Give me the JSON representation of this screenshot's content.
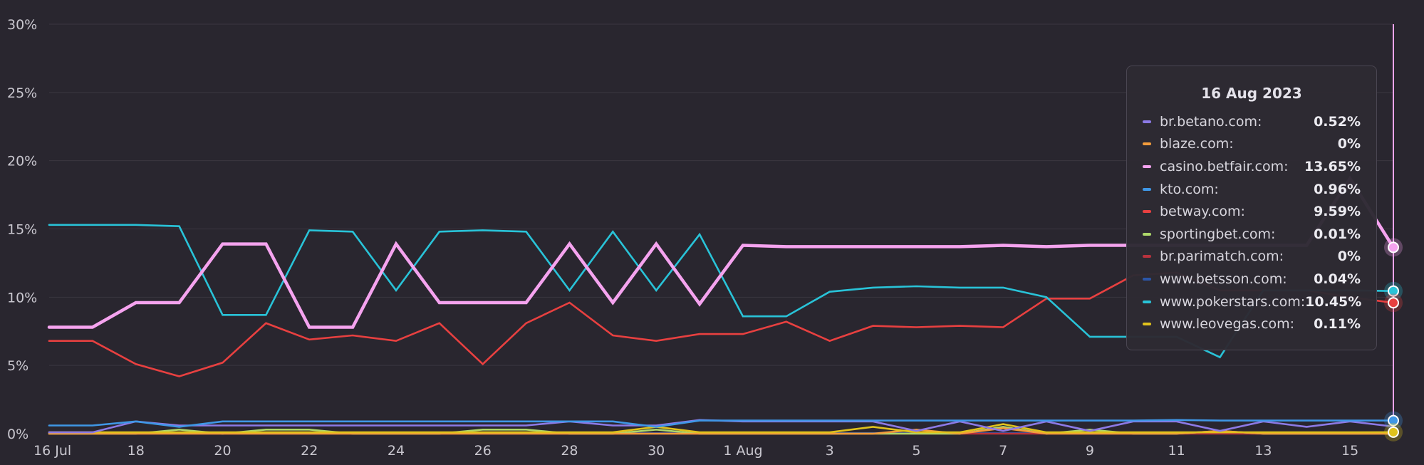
{
  "chart_data": {
    "type": "line",
    "title": "",
    "xlabel": "",
    "ylabel": "",
    "ylim": [
      0,
      30
    ],
    "y_ticks": [
      "0%",
      "5%",
      "10%",
      "15%",
      "20%",
      "25%",
      "30%"
    ],
    "x_tick_labels": [
      "16 Jul",
      "18",
      "20",
      "22",
      "24",
      "26",
      "28",
      "30",
      "1 Aug",
      "3",
      "5",
      "7",
      "9",
      "11",
      "13",
      "15"
    ],
    "x_tick_index": [
      0,
      2,
      4,
      6,
      8,
      10,
      12,
      14,
      16,
      18,
      20,
      22,
      24,
      26,
      28,
      30
    ],
    "grid": true,
    "legend": "tooltip-right",
    "x": [
      "16 Jul",
      "17 Jul",
      "18 Jul",
      "19 Jul",
      "20 Jul",
      "21 Jul",
      "22 Jul",
      "23 Jul",
      "24 Jul",
      "25 Jul",
      "26 Jul",
      "27 Jul",
      "28 Jul",
      "29 Jul",
      "30 Jul",
      "31 Jul",
      "1 Aug",
      "2 Aug",
      "3 Aug",
      "4 Aug",
      "5 Aug",
      "6 Aug",
      "7 Aug",
      "8 Aug",
      "9 Aug",
      "10 Aug",
      "11 Aug",
      "12 Aug",
      "13 Aug",
      "14 Aug",
      "15 Aug",
      "16 Aug"
    ],
    "series": [
      {
        "name": "br.betano.com",
        "color": "#8c7ae6",
        "values": [
          0.1,
          0.1,
          0.9,
          0.6,
          0.6,
          0.6,
          0.6,
          0.6,
          0.6,
          0.6,
          0.6,
          0.6,
          0.9,
          0.6,
          0.6,
          1.0,
          0.9,
          0.9,
          0.9,
          0.9,
          0.2,
          0.9,
          0.2,
          0.9,
          0.2,
          0.9,
          0.9,
          0.2,
          0.9,
          0.5,
          0.9,
          0.52
        ]
      },
      {
        "name": "blaze.com",
        "color": "#f39c3c",
        "values": [
          0,
          0,
          0,
          0,
          0,
          0,
          0,
          0,
          0,
          0,
          0,
          0,
          0,
          0,
          0,
          0,
          0,
          0,
          0,
          0,
          0.3,
          0,
          0.4,
          0,
          0,
          0,
          0,
          0.2,
          0,
          0,
          0,
          0
        ]
      },
      {
        "name": "casino.betfair.com",
        "color": "#f5a3ef",
        "values": [
          7.8,
          7.8,
          9.6,
          9.6,
          13.9,
          13.9,
          7.8,
          7.8,
          13.9,
          9.6,
          9.6,
          9.6,
          13.9,
          9.6,
          13.9,
          9.5,
          13.8,
          13.7,
          13.7,
          13.7,
          13.7,
          13.7,
          13.8,
          13.7,
          13.8,
          13.8,
          13.8,
          13.8,
          13.8,
          13.8,
          18.7,
          13.65
        ]
      },
      {
        "name": "kto.com",
        "color": "#3f97e6",
        "values": [
          0.6,
          0.6,
          0.9,
          0.5,
          0.9,
          0.9,
          0.9,
          0.9,
          0.9,
          0.9,
          0.9,
          0.9,
          0.9,
          0.9,
          0.5,
          0.96,
          0.96,
          0.96,
          0.96,
          0.96,
          0.96,
          0.96,
          0.96,
          0.96,
          0.96,
          0.96,
          1.0,
          0.96,
          0.96,
          0.96,
          0.96,
          0.96
        ]
      },
      {
        "name": "betway.com",
        "color": "#e84040",
        "values": [
          6.8,
          6.8,
          5.1,
          4.2,
          5.2,
          8.1,
          6.9,
          7.2,
          6.8,
          8.1,
          5.1,
          8.1,
          9.6,
          7.2,
          6.8,
          7.3,
          7.3,
          8.2,
          6.8,
          7.9,
          7.8,
          7.9,
          7.8,
          9.9,
          9.9,
          11.6,
          11.8,
          10.5,
          10.5,
          10.5,
          10.0,
          9.59
        ]
      },
      {
        "name": "sportingbet.com",
        "color": "#aed86a",
        "values": [
          0,
          0,
          0,
          0.3,
          0,
          0.3,
          0.3,
          0,
          0,
          0,
          0.3,
          0.3,
          0,
          0,
          0.3,
          0,
          0,
          0,
          0,
          0,
          0,
          0,
          0.5,
          0,
          0.3,
          0,
          0,
          0.2,
          0,
          0,
          0,
          0.01
        ]
      },
      {
        "name": "br.parimatch.com",
        "color": "#b8323d",
        "values": [
          0,
          0,
          0,
          0,
          0,
          0,
          0,
          0,
          0,
          0,
          0,
          0,
          0,
          0,
          0,
          0,
          0,
          0,
          0,
          0,
          0,
          0,
          0,
          0,
          0,
          0,
          0,
          0,
          0,
          0,
          0,
          0
        ]
      },
      {
        "name": "www.betsson.com",
        "color": "#2b56a8",
        "values": [
          0.04,
          0.04,
          0.04,
          0.04,
          0.04,
          0.04,
          0.04,
          0.04,
          0.04,
          0.04,
          0.04,
          0.04,
          0.04,
          0.04,
          0.04,
          0.04,
          0.04,
          0.04,
          0.04,
          0.04,
          0.04,
          0.04,
          0.04,
          0.04,
          0.04,
          0.04,
          0.04,
          0.04,
          0.04,
          0.04,
          0.04,
          0.04
        ]
      },
      {
        "name": "www.pokerstars.com",
        "color": "#29c3d8",
        "values": [
          15.3,
          15.3,
          15.3,
          15.2,
          8.7,
          8.7,
          14.9,
          14.8,
          10.5,
          14.8,
          14.9,
          14.8,
          10.5,
          14.8,
          10.5,
          14.6,
          8.6,
          8.6,
          10.4,
          10.7,
          10.8,
          10.7,
          10.7,
          10.0,
          7.1,
          7.1,
          7.1,
          5.6,
          10.5,
          10.5,
          10.5,
          10.45
        ]
      },
      {
        "name": "www.leovegas.com",
        "color": "#e0c21c",
        "values": [
          0.1,
          0.1,
          0.1,
          0.1,
          0.1,
          0.1,
          0.1,
          0.1,
          0.1,
          0.1,
          0.1,
          0.1,
          0.1,
          0.1,
          0.5,
          0.1,
          0.1,
          0.1,
          0.1,
          0.5,
          0.1,
          0.1,
          0.7,
          0.1,
          0.1,
          0.1,
          0.1,
          0.1,
          0.1,
          0.1,
          0.1,
          0.11
        ]
      }
    ],
    "tooltip": {
      "date": "16 Aug 2023",
      "rows": [
        {
          "label": "br.betano.com:",
          "value": "0.52%",
          "color": "#8c7ae6"
        },
        {
          "label": "blaze.com:",
          "value": "0%",
          "color": "#f39c3c"
        },
        {
          "label": "casino.betfair.com:",
          "value": "13.65%",
          "color": "#f5a3ef"
        },
        {
          "label": "kto.com:",
          "value": "0.96%",
          "color": "#3f97e6"
        },
        {
          "label": "betway.com:",
          "value": "9.59%",
          "color": "#e84040"
        },
        {
          "label": "sportingbet.com:",
          "value": "0.01%",
          "color": "#aed86a"
        },
        {
          "label": "br.parimatch.com:",
          "value": "0%",
          "color": "#b8323d"
        },
        {
          "label": "www.betsson.com:",
          "value": "0.04%",
          "color": "#2b56a8"
        },
        {
          "label": "www.pokerstars.com:",
          "value": "10.45%",
          "color": "#29c3d8"
        },
        {
          "label": "www.leovegas.com:",
          "value": "0.11%",
          "color": "#e0c21c"
        }
      ]
    },
    "hover_index": 31,
    "hover_line_color": "#f5a3ef"
  }
}
